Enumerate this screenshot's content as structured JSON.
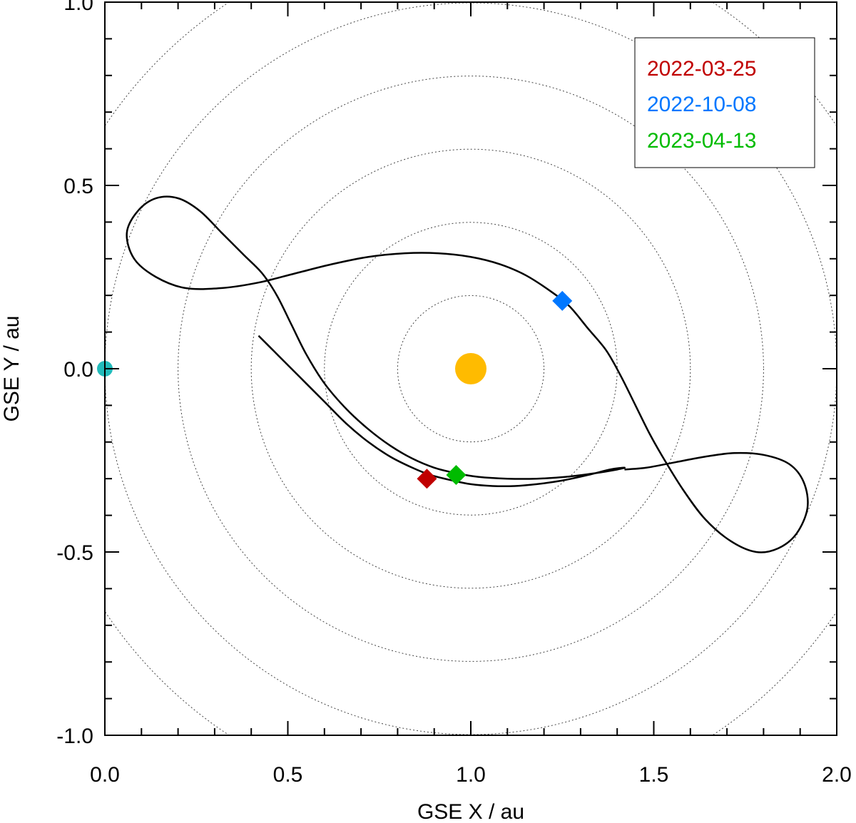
{
  "chart_data": {
    "type": "line",
    "title": "",
    "xlabel": "GSE X / au",
    "ylabel": "GSE Y / au",
    "xlim": [
      0.0,
      2.0
    ],
    "ylim": [
      -1.0,
      1.0
    ],
    "xticks": [
      0.0,
      0.5,
      1.0,
      1.5,
      2.0
    ],
    "xtick_labels": [
      "0.0",
      "0.5",
      "1.0",
      "1.5",
      "2.0"
    ],
    "yticks": [
      -1.0,
      -0.5,
      0.0,
      0.5,
      1.0
    ],
    "ytick_labels": [
      "-1.0",
      "-0.5",
      "0.0",
      "0.5",
      "1.0"
    ],
    "x_minor_step": 0.1,
    "y_minor_step": 0.1,
    "legend_position": "top-right",
    "grid": false,
    "reference_circles": {
      "center": [
        1.0,
        0.0
      ],
      "radii_au": [
        0.2,
        0.4,
        0.6,
        0.8,
        1.0,
        1.2
      ],
      "style": "dotted"
    },
    "sun": {
      "x": 1.0,
      "y": 0.0,
      "color": "#FFBB00"
    },
    "earth": {
      "x": 0.0,
      "y": 0.0,
      "color": "#22BBBB"
    },
    "orbit": [
      [
        0.42,
        0.09
      ],
      [
        0.46,
        0.05
      ],
      [
        0.5,
        0.01
      ],
      [
        0.55,
        -0.04
      ],
      [
        0.6,
        -0.09
      ],
      [
        0.66,
        -0.15
      ],
      [
        0.72,
        -0.2
      ],
      [
        0.78,
        -0.24
      ],
      [
        0.84,
        -0.27
      ],
      [
        0.89,
        -0.29
      ],
      [
        0.95,
        -0.305
      ],
      [
        1.0,
        -0.315
      ],
      [
        1.06,
        -0.32
      ],
      [
        1.12,
        -0.32
      ],
      [
        1.18,
        -0.315
      ],
      [
        1.25,
        -0.305
      ],
      [
        1.32,
        -0.29
      ],
      [
        1.38,
        -0.275
      ],
      [
        1.42,
        -0.27
      ],
      [
        1.4,
        -0.275
      ],
      [
        1.34,
        -0.285
      ],
      [
        1.26,
        -0.295
      ],
      [
        1.18,
        -0.3
      ],
      [
        1.1,
        -0.3
      ],
      [
        1.02,
        -0.295
      ],
      [
        0.96,
        -0.285
      ],
      [
        0.9,
        -0.27
      ],
      [
        0.84,
        -0.245
      ],
      [
        0.78,
        -0.21
      ],
      [
        0.72,
        -0.165
      ],
      [
        0.66,
        -0.11
      ],
      [
        0.6,
        -0.04
      ],
      [
        0.55,
        0.04
      ],
      [
        0.51,
        0.12
      ],
      [
        0.47,
        0.2
      ],
      [
        0.43,
        0.26
      ],
      [
        0.38,
        0.31
      ],
      [
        0.32,
        0.37
      ],
      [
        0.26,
        0.43
      ],
      [
        0.2,
        0.465
      ],
      [
        0.14,
        0.465
      ],
      [
        0.09,
        0.43
      ],
      [
        0.06,
        0.37
      ],
      [
        0.08,
        0.3
      ],
      [
        0.14,
        0.25
      ],
      [
        0.22,
        0.22
      ],
      [
        0.32,
        0.22
      ],
      [
        0.42,
        0.235
      ],
      [
        0.52,
        0.26
      ],
      [
        0.62,
        0.285
      ],
      [
        0.72,
        0.305
      ],
      [
        0.82,
        0.315
      ],
      [
        0.91,
        0.315
      ],
      [
        1.0,
        0.305
      ],
      [
        1.08,
        0.285
      ],
      [
        1.15,
        0.255
      ],
      [
        1.22,
        0.21
      ],
      [
        1.27,
        0.17
      ],
      [
        1.32,
        0.11
      ],
      [
        1.37,
        0.05
      ],
      [
        1.41,
        -0.02
      ],
      [
        1.45,
        -0.1
      ],
      [
        1.49,
        -0.18
      ],
      [
        1.53,
        -0.25
      ],
      [
        1.58,
        -0.33
      ],
      [
        1.64,
        -0.41
      ],
      [
        1.71,
        -0.47
      ],
      [
        1.78,
        -0.5
      ],
      [
        1.84,
        -0.49
      ],
      [
        1.89,
        -0.45
      ],
      [
        1.92,
        -0.38
      ],
      [
        1.91,
        -0.31
      ],
      [
        1.87,
        -0.26
      ],
      [
        1.8,
        -0.235
      ],
      [
        1.72,
        -0.23
      ],
      [
        1.64,
        -0.24
      ],
      [
        1.56,
        -0.255
      ],
      [
        1.48,
        -0.27
      ],
      [
        1.42,
        -0.275
      ]
    ],
    "markers": [
      {
        "label": "2022-03-25",
        "x": 0.88,
        "y": -0.3,
        "color": "#C00000"
      },
      {
        "label": "2022-10-08",
        "x": 1.25,
        "y": 0.185,
        "color": "#0077FF"
      },
      {
        "label": "2023-04-13",
        "x": 0.96,
        "y": -0.29,
        "color": "#00BB00"
      }
    ]
  }
}
